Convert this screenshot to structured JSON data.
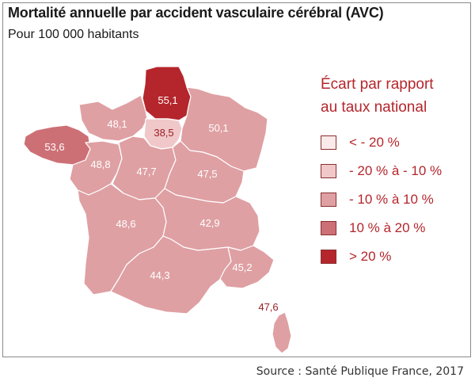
{
  "title": "Mortalité annuelle par accident vasculaire cérébral (AVC)",
  "subtitle": "Pour 100 000 habitants",
  "legend": {
    "title_line1": "Écart par rapport",
    "title_line2": "au taux national",
    "items": [
      {
        "label": "< - 20 %",
        "color": "#fbeaea"
      },
      {
        "label": "- 20 % à - 10 %",
        "color": "#f0c8c9"
      },
      {
        "label": "- 10 % à 10 %",
        "color": "#dfa0a3"
      },
      {
        "label": "10 % à 20 %",
        "color": "#cd7076"
      },
      {
        "label": "> 20 %",
        "color": "#b4262c"
      }
    ]
  },
  "regions": [
    {
      "name": "Hauts-de-France",
      "value": "55,1",
      "color": "#b4262c"
    },
    {
      "name": "Normandie",
      "value": "48,1",
      "color": "#dfa0a3"
    },
    {
      "name": "Île-de-France",
      "value": "38,5",
      "color": "#f0c8c9"
    },
    {
      "name": "Grand Est",
      "value": "50,1",
      "color": "#dfa0a3"
    },
    {
      "name": "Bretagne",
      "value": "53,6",
      "color": "#cd7076"
    },
    {
      "name": "Pays de la Loire",
      "value": "48,8",
      "color": "#dfa0a3"
    },
    {
      "name": "Centre-Val de Loire",
      "value": "47,7",
      "color": "#dfa0a3"
    },
    {
      "name": "Bourgogne-Franche-Comté",
      "value": "47,5",
      "color": "#dfa0a3"
    },
    {
      "name": "Nouvelle-Aquitaine",
      "value": "48,6",
      "color": "#dfa0a3"
    },
    {
      "name": "Auvergne-Rhône-Alpes",
      "value": "42,9",
      "color": "#dfa0a3"
    },
    {
      "name": "Occitanie",
      "value": "44,3",
      "color": "#dfa0a3"
    },
    {
      "name": "Provence-Alpes-Côte d'Azur",
      "value": "45,2",
      "color": "#dfa0a3"
    },
    {
      "name": "Corse",
      "value": "47,6",
      "color": "#dfa0a3"
    }
  ],
  "source": "Source : Santé Publique France, 2017"
}
